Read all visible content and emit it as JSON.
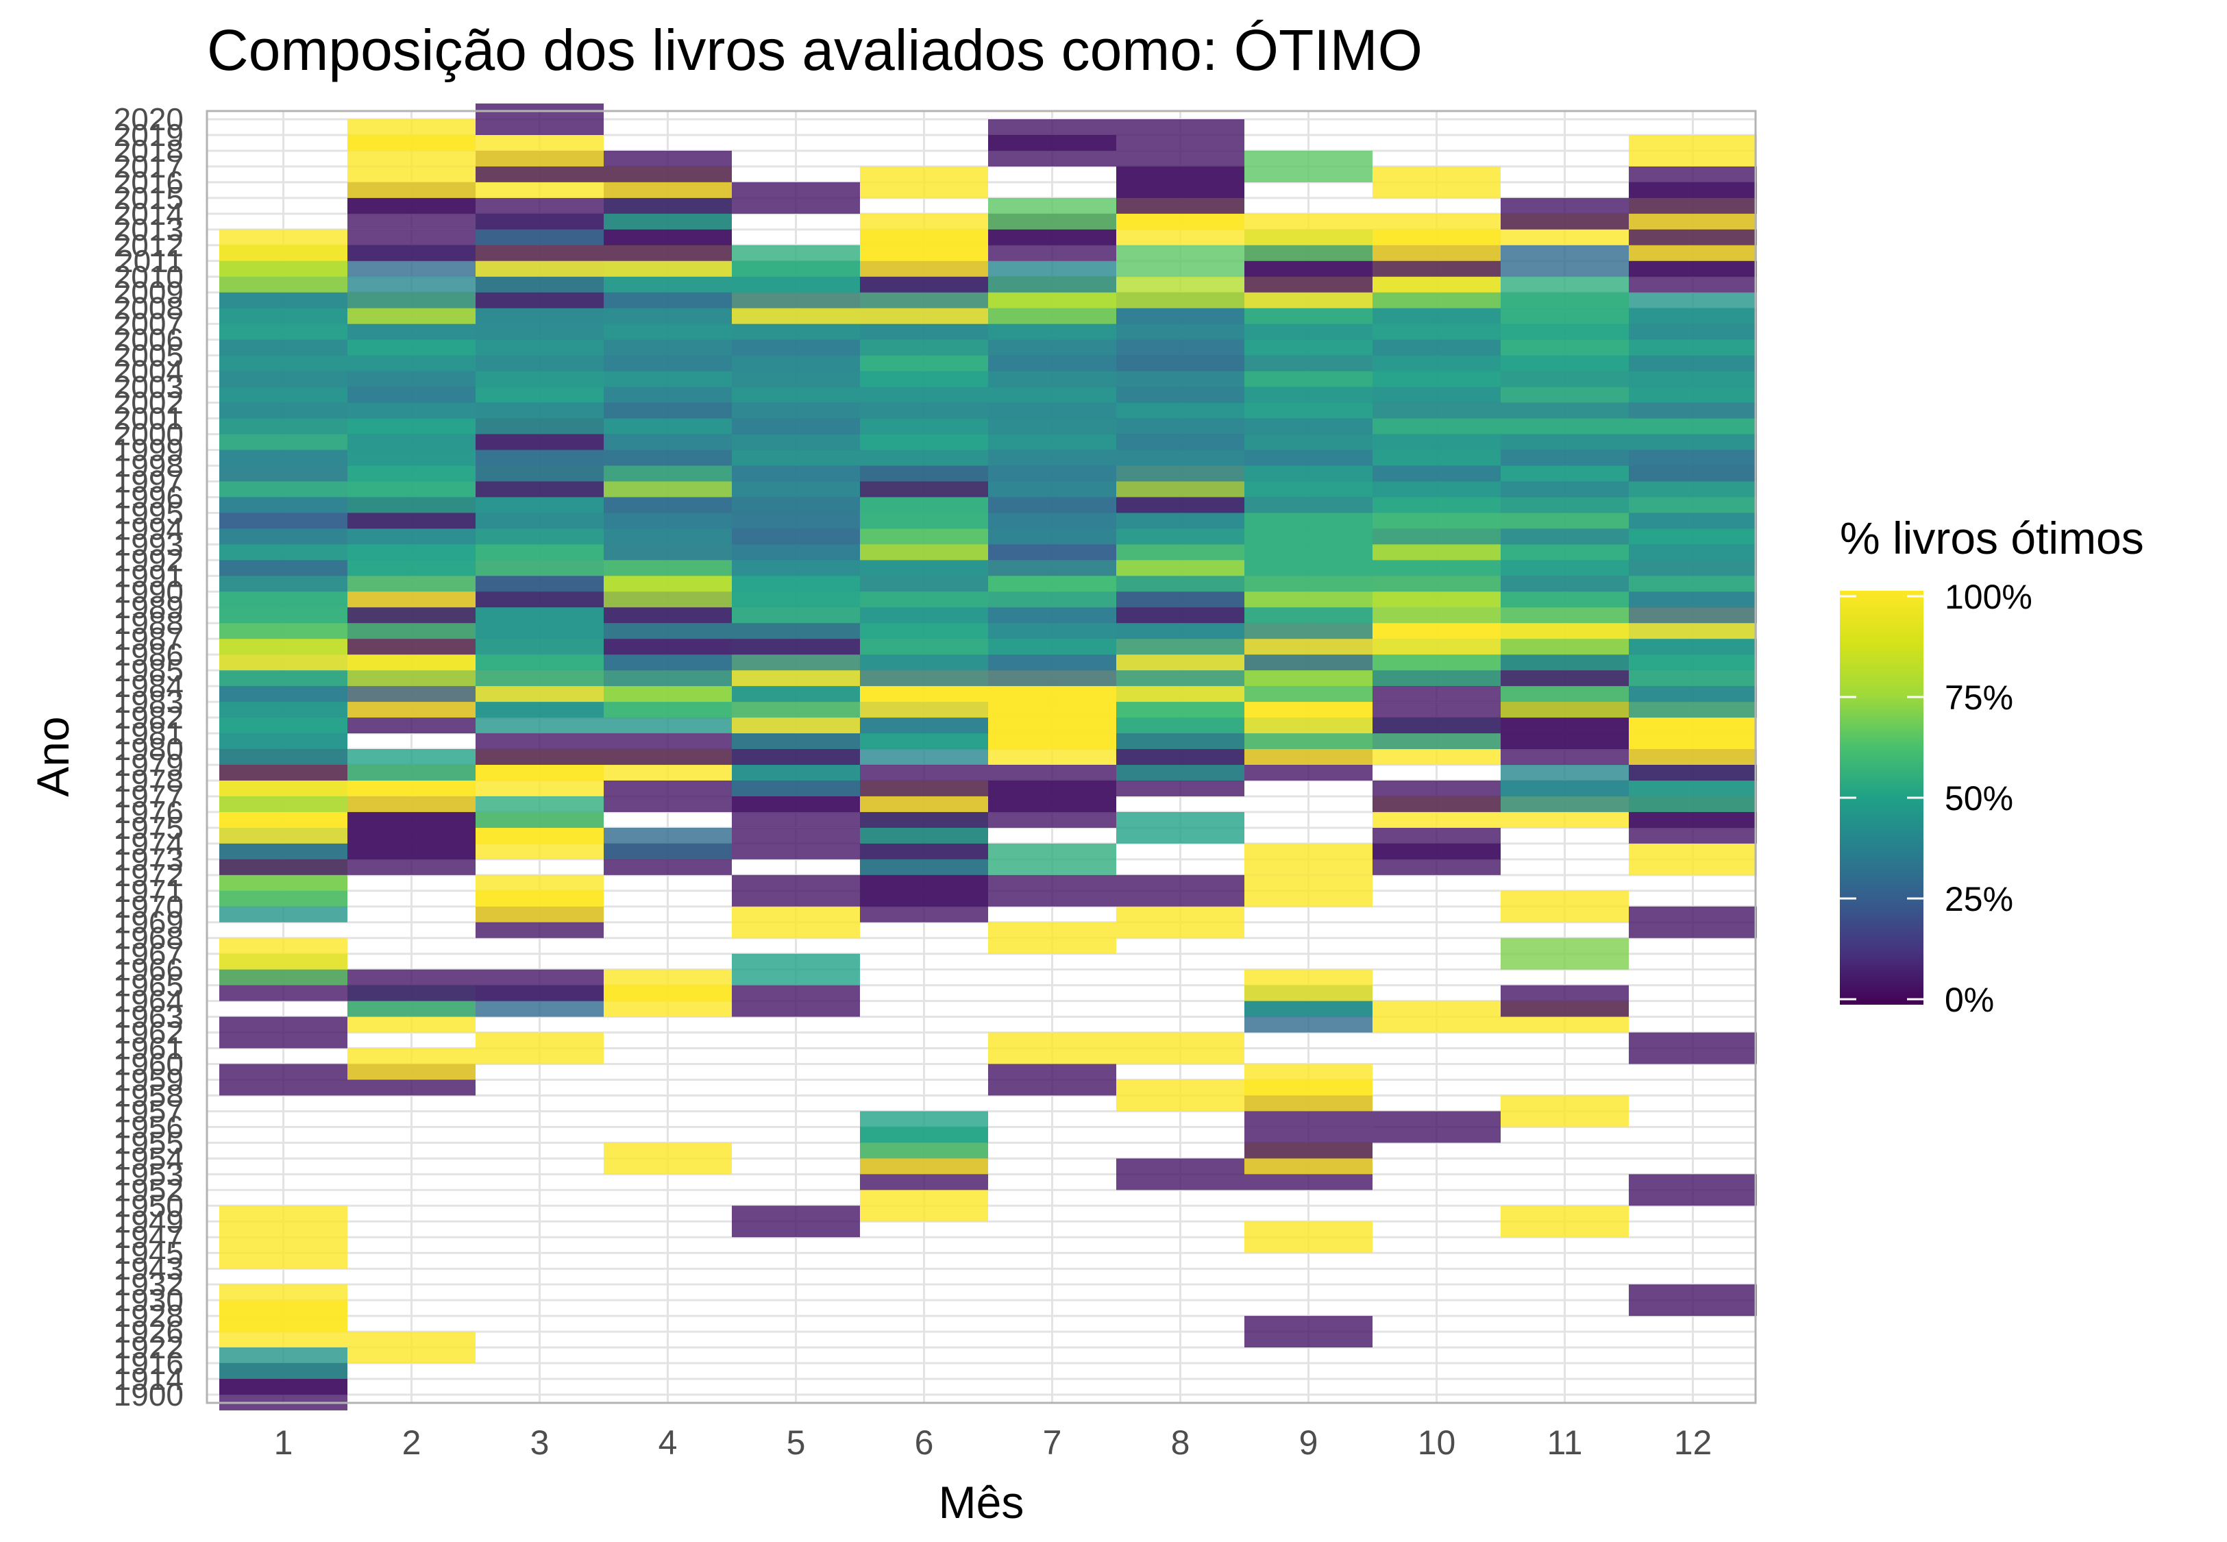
{
  "chart_data": {
    "type": "heatmap",
    "title": "Composição dos livros avaliados como: ÓTIMO",
    "xlabel": "Mês",
    "ylabel": "Ano",
    "x_categories": [
      1,
      2,
      3,
      4,
      5,
      6,
      7,
      8,
      9,
      10,
      11,
      12
    ],
    "years": [
      1900,
      1914,
      1916,
      1922,
      1926,
      1928,
      1930,
      1932,
      1943,
      1945,
      1947,
      1949,
      1950,
      1952,
      1953,
      1954,
      1955,
      1956,
      1957,
      1958,
      1959,
      1960,
      1961,
      1962,
      1963,
      1964,
      1965,
      1966,
      1967,
      1968,
      1969,
      1970,
      1971,
      1972,
      1973,
      1974,
      1975,
      1976,
      1977,
      1978,
      1979,
      1980,
      1981,
      1982,
      1983,
      1984,
      1985,
      1986,
      1987,
      1988,
      1989,
      1990,
      1991,
      1992,
      1993,
      1994,
      1995,
      1996,
      1997,
      1998,
      1999,
      2000,
      2001,
      2002,
      2003,
      2004,
      2005,
      2006,
      2007,
      2008,
      2009,
      2010,
      2011,
      2012,
      2013,
      2014,
      2015,
      2016,
      2017,
      2018,
      2019,
      2020
    ],
    "legend": {
      "title": "% livros ótimos",
      "position": "right",
      "breaks": [
        "100%",
        "75%",
        "50%",
        "25%",
        "0%"
      ],
      "palette": "viridis"
    },
    "value_range": [
      0,
      100
    ],
    "grid": true,
    "cells": {
      "1": {
        "1900": 5,
        "1914": 5,
        "1916": 45,
        "1926": 100,
        "1928": 100,
        "1930": 100,
        "1945": 100,
        "1949": 100,
        "1959": 5,
        "1962": 5,
        "1965": 5,
        "1966": 65,
        "1967": 100,
        "1970": 45,
        "1971": 65,
        "1972": 70,
        "1973": 5,
        "1974": 40,
        "1975": 100,
        "1976": 100,
        "1977": 75,
        "1978": 100,
        "1979": 5,
        "1980": 45,
        "1981": 45,
        "1982": 50,
        "1983": 45,
        "1984": 35,
        "1985": 55,
        "1986": 100,
        "1987": 80,
        "1988": 60,
        "1989": 55,
        "1990": 55,
        "1991": 40,
        "1992": 30,
        "1993": 50,
        "1994": 35,
        "1995": 25,
        "1996": 40,
        "1997": 55,
        "1998": 35,
        "1999": 40,
        "2000": 55,
        "2001": 45,
        "2002": 40,
        "2003": 45,
        "2004": 40,
        "2005": 45,
        "2006": 40,
        "2007": 50,
        "2008": 45,
        "2009": 40,
        "2010": 75,
        "2011": 80,
        "2012": 100
      },
      "2": {
        "1922": 100,
        "1959": 5,
        "1960": 100,
        "1963": 100,
        "1964": 50,
        "1965": 5,
        "1973": 5,
        "1974": 5,
        "1975": 5,
        "1976": 5,
        "1977": 100,
        "1978": 100,
        "1979": 50,
        "1982": 5,
        "1983": 100,
        "1984": 25,
        "1985": 80,
        "1986": 100,
        "1987": 5,
        "1988": 60,
        "1989": 5,
        "1990": 100,
        "1991": 55,
        "1992": 50,
        "1993": 50,
        "1994": 40,
        "1995": 5,
        "1996": 50,
        "1997": 55,
        "1998": 50,
        "1999": 45,
        "2000": 45,
        "2001": 50,
        "2002": 40,
        "2003": 35,
        "2004": 40,
        "2005": 45,
        "2006": 50,
        "2007": 40,
        "2008": 80,
        "2009": 40,
        "2011": 30,
        "2012": 5,
        "2014": 5,
        "2015": 5,
        "2016": 100,
        "2018": 100,
        "2019": 100
      },
      "3": {
        "1961": 100,
        "1964": 30,
        "1965": 5,
        "1969": 5,
        "1970": 100,
        "1971": 100,
        "1974": 100,
        "1975": 100,
        "1976": 55,
        "1978": 100,
        "1979": 100,
        "1980": 5,
        "1982": 45,
        "1983": 45,
        "1984": 100,
        "1985": 50,
        "1986": 55,
        "1987": 45,
        "1988": 45,
        "1989": 45,
        "1990": 5,
        "1991": 30,
        "1992": 60,
        "1993": 55,
        "1994": 45,
        "1995": 40,
        "1996": 45,
        "1997": 5,
        "1998": 40,
        "1999": 30,
        "2000": 5,
        "2001": 45,
        "2002": 40,
        "2003": 50,
        "2004": 45,
        "2005": 40,
        "2006": 45,
        "2007": 40,
        "2008": 40,
        "2009": 5,
        "2010": 40,
        "2011": 100,
        "2012": 5,
        "2013": 30,
        "2014": 5,
        "2016": 100,
        "2017": 5,
        "2018": 100,
        "2020": 5
      },
      "4": {
        "1954": 100,
        "1964": 100,
        "1965": 100,
        "1973": 5,
        "1974": 30,
        "1977": 5,
        "1979": 100,
        "1980": 5,
        "1982": 45,
        "1983": 60,
        "1984": 75,
        "1985": 40,
        "1986": 30,
        "1987": 5,
        "1988": 40,
        "1989": 5,
        "1990": 75,
        "1991": 80,
        "1992": 55,
        "1993": 35,
        "1994": 40,
        "1995": 35,
        "1996": 30,
        "1997": 75,
        "1998": 45,
        "1999": 30,
        "2000": 40,
        "2001": 45,
        "2002": 30,
        "2003": 40,
        "2004": 45,
        "2005": 35,
        "2006": 40,
        "2007": 45,
        "2008": 40,
        "2009": 30,
        "2010": 50,
        "2011": 100,
        "2012": 5,
        "2013": 5,
        "2014": 50,
        "2015": 5,
        "2016": 100,
        "2017": 5
      },
      "5": {
        "1949": 5,
        "1964": 5,
        "1966": 50,
        "1969": 100,
        "1971": 5,
        "1974": 5,
        "1976": 5,
        "1977": 5,
        "1978": 35,
        "1979": 45,
        "1980": 5,
        "1981": 40,
        "1982": 100,
        "1983": 55,
        "1984": 45,
        "1985": 100,
        "1986": 40,
        "1987": 5,
        "1988": 40,
        "1989": 55,
        "1990": 50,
        "1991": 50,
        "1992": 40,
        "1993": 35,
        "1994": 30,
        "1995": 35,
        "1996": 35,
        "1997": 40,
        "1998": 35,
        "1999": 45,
        "2000": 40,
        "2001": 35,
        "2002": 40,
        "2003": 45,
        "2004": 40,
        "2005": 40,
        "2006": 35,
        "2007": 45,
        "2008": 100,
        "2009": 35,
        "2010": 50,
        "2011": 55,
        "2015": 5
      },
      "6": {
        "1950": 100,
        "1953": 5,
        "1954": 100,
        "1955": 55,
        "1956": 50,
        "1970": 5,
        "1971": 5,
        "1972": 5,
        "1973": 40,
        "1974": 5,
        "1975": 50,
        "1976": 5,
        "1977": 100,
        "1978": 5,
        "1980": 40,
        "1981": 50,
        "1982": 35,
        "1983": 100,
        "1984": 100,
        "1985": 35,
        "1986": 45,
        "1987": 55,
        "1988": 50,
        "1989": 45,
        "1990": 55,
        "1991": 40,
        "1992": 45,
        "1993": 80,
        "1994": 60,
        "1995": 55,
        "1996": 55,
        "1997": 5,
        "1998": 35,
        "1999": 45,
        "2000": 50,
        "2001": 45,
        "2002": 40,
        "2003": 45,
        "2004": 50,
        "2005": 55,
        "2006": 45,
        "2007": 40,
        "2008": 100,
        "2009": 40,
        "2010": 5,
        "2011": 100,
        "2012": 100,
        "2013": 100,
        "2016": 100
      },
      "7": {
        "1959": 5,
        "1961": 100,
        "1968": 100,
        "1971": 5,
        "1973": 55,
        "1976": 5,
        "1977": 5,
        "1978": 5,
        "1980": 100,
        "1981": 100,
        "1982": 100,
        "1983": 100,
        "1984": 100,
        "1985": 30,
        "1986": 35,
        "1987": 50,
        "1988": 40,
        "1989": 35,
        "1990": 55,
        "1991": 60,
        "1992": 35,
        "1993": 25,
        "1994": 40,
        "1995": 35,
        "1996": 30,
        "1997": 40,
        "1998": 35,
        "1999": 40,
        "2000": 45,
        "2001": 40,
        "2002": 40,
        "2003": 45,
        "2004": 40,
        "2005": 35,
        "2006": 40,
        "2007": 45,
        "2008": 70,
        "2009": 80,
        "2010": 40,
        "2012": 5,
        "2013": 5,
        "2014": 65,
        "2018": 5,
        "2019": 5
      },
      "8": {
        "1953": 5,
        "1958": 100,
        "1961": 100,
        "1969": 100,
        "1971": 5,
        "1975": 50,
        "1978": 5,
        "1979": 45,
        "1980": 5,
        "1981": 45,
        "1982": 55,
        "1983": 60,
        "1984": 100,
        "1985": 45,
        "1986": 100,
        "1987": 45,
        "1988": 40,
        "1989": 5,
        "1990": 30,
        "1991": 55,
        "1992": 75,
        "1993": 55,
        "1994": 45,
        "1995": 40,
        "1996": 5,
        "1997": 75,
        "1998": 35,
        "1999": 40,
        "2000": 35,
        "2001": 40,
        "2002": 45,
        "2003": 35,
        "2004": 40,
        "2005": 30,
        "2006": 35,
        "2007": 40,
        "2008": 35,
        "2009": 80,
        "2011": 65,
        "2013": 100,
        "2014": 100,
        "2015": 5,
        "2016": 5,
        "2017": 5,
        "2019": 5
      },
      "9": {
        "1926": 5,
        "1947": 100,
        "1953": 5,
        "1954": 100,
        "1955": 5,
        "1957": 5,
        "1958": 100,
        "1959": 100,
        "1963": 30,
        "1964": 45,
        "1965": 100,
        "1971": 100,
        "1973": 100,
        "1979": 5,
        "1980": 100,
        "1981": 55,
        "1982": 100,
        "1983": 100,
        "1984": 60,
        "1985": 75,
        "1986": 30,
        "1987": 100,
        "1988": 40,
        "1989": 55,
        "1990": 75,
        "1991": 55,
        "1992": 55,
        "1993": 55,
        "1994": 55,
        "1995": 55,
        "1996": 40,
        "1997": 50,
        "1998": 45,
        "1999": 35,
        "2000": 45,
        "2001": 40,
        "2002": 50,
        "2003": 45,
        "2004": 55,
        "2005": 40,
        "2006": 50,
        "2007": 45,
        "2008": 55,
        "2009": 100,
        "2010": 5,
        "2011": 5,
        "2012": 65,
        "2013": 100,
        "2017": 65
      },
      "10": {
        "1956": 5,
        "1963": 100,
        "1973": 5,
        "1974": 5,
        "1976": 100,
        "1977": 5,
        "1980": 100,
        "1981": 45,
        "1982": 5,
        "1984": 5,
        "1985": 55,
        "1986": 65,
        "1987": 100,
        "1988": 100,
        "1989": 70,
        "1990": 80,
        "1991": 55,
        "1992": 55,
        "1993": 80,
        "1994": 45,
        "1995": 60,
        "1996": 50,
        "1997": 45,
        "1998": 35,
        "1999": 50,
        "2000": 45,
        "2001": 55,
        "2002": 40,
        "2003": 45,
        "2004": 50,
        "2005": 45,
        "2006": 40,
        "2007": 50,
        "2008": 45,
        "2009": 70,
        "2010": 100,
        "2011": 5,
        "2012": 100,
        "2013": 100,
        "2016": 100
      },
      "11": {
        "1949": 100,
        "1957": 100,
        "1963": 100,
        "1964": 5,
        "1967": 70,
        "1970": 100,
        "1976": 100,
        "1977": 40,
        "1978": 40,
        "1980": 5,
        "1981": 5,
        "1982": 5,
        "1983": 85,
        "1984": 55,
        "1985": 5,
        "1986": 50,
        "1987": 75,
        "1988": 100,
        "1989": 60,
        "1990": 55,
        "1991": 40,
        "1992": 50,
        "1993": 55,
        "1994": 40,
        "1995": 60,
        "1996": 45,
        "1997": 40,
        "1998": 50,
        "1999": 35,
        "2000": 45,
        "2001": 55,
        "2002": 40,
        "2003": 55,
        "2004": 45,
        "2005": 50,
        "2006": 55,
        "2007": 50,
        "2008": 55,
        "2009": 55,
        "2011": 30,
        "2013": 100,
        "2014": 5
      },
      "12": {
        "1930": 5,
        "1952": 5,
        "1961": 5,
        "1969": 5,
        "1973": 100,
        "1975": 5,
        "1976": 5,
        "1977": 55,
        "1978": 45,
        "1979": 5,
        "1980": 100,
        "1981": 100,
        "1982": 100,
        "1983": 45,
        "1984": 40,
        "1985": 55,
        "1986": 50,
        "1987": 45,
        "1988": 100,
        "1989": 30,
        "1990": 40,
        "1991": 55,
        "1992": 40,
        "1993": 45,
        "1994": 50,
        "1995": 40,
        "1996": 55,
        "1997": 45,
        "1998": 30,
        "1999": 35,
        "2000": 45,
        "2001": 55,
        "2002": 35,
        "2003": 50,
        "2004": 45,
        "2005": 40,
        "2006": 50,
        "2007": 40,
        "2008": 45,
        "2010": 5,
        "2011": 5,
        "2012": 100,
        "2013": 5,
        "2014": 100,
        "2015": 5,
        "2016": 5,
        "2018": 100
      }
    }
  }
}
